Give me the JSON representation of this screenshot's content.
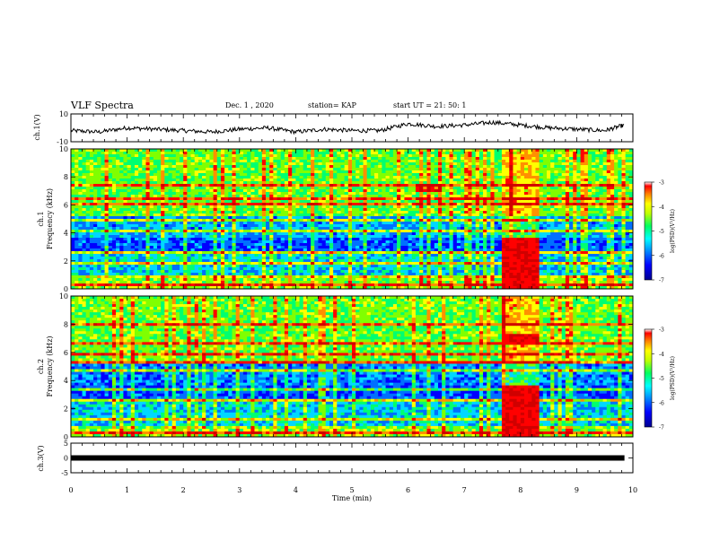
{
  "header": {
    "title": "VLF Spectra",
    "date": "Dec. 1 , 2020",
    "station": "station= KAP",
    "start": "start UT = 21: 50: 1"
  },
  "colors": {
    "cmap": [
      "#000090",
      "#0000ff",
      "#0070ff",
      "#00d8ff",
      "#00ff70",
      "#80ff00",
      "#ffff00",
      "#ff9000",
      "#ff0000",
      "#d00000"
    ],
    "trace": "#000000",
    "frame": "#000000"
  },
  "chart_data": [
    {
      "type": "line",
      "name": "ch1-waveform",
      "ylabel": "ch.1(V)",
      "ylim": [
        -10,
        10
      ],
      "yticks": [
        "10",
        "-10"
      ],
      "x": [
        0.0,
        0.5,
        1.0,
        1.5,
        2.0,
        2.5,
        3.0,
        3.5,
        4.0,
        4.5,
        5.0,
        5.5,
        6.0,
        6.5,
        7.0,
        7.5,
        8.0,
        8.5,
        9.0,
        9.5,
        9.85
      ],
      "y": [
        -2,
        -3,
        0,
        -1,
        -2,
        -3,
        -1,
        0,
        -3,
        -1,
        -2,
        -2,
        3,
        1,
        2,
        4,
        2,
        0,
        -1,
        -2,
        2
      ]
    },
    {
      "type": "heatmap",
      "name": "ch1-spectrogram",
      "ylabel": "ch.1 Frequency (kHz)",
      "ylim": [
        0,
        10
      ],
      "yticks": [
        "0",
        "2",
        "4",
        "6",
        "8",
        "10"
      ],
      "colorbar": {
        "label": "log(PSD)(V²/Hz)",
        "range": [
          -7,
          -3
        ],
        "ticks": [
          "-3",
          "-4",
          "-5",
          "-6",
          "-7"
        ]
      },
      "burst": {
        "t_start": 7.65,
        "t_end": 8.3
      }
    },
    {
      "type": "heatmap",
      "name": "ch2-spectrogram",
      "ylabel": "ch.2 Frequency (kHz)",
      "ylim": [
        0,
        10
      ],
      "yticks": [
        "0",
        "2",
        "4",
        "6",
        "8",
        "10"
      ],
      "colorbar": {
        "label": "log(PSD)(V²/Hz)",
        "range": [
          -7,
          -3
        ],
        "ticks": [
          "-3",
          "-4",
          "-5",
          "-6",
          "-7"
        ]
      },
      "burst": {
        "t_start": 7.65,
        "t_end": 8.3
      }
    },
    {
      "type": "line",
      "name": "ch3-level",
      "ylabel": "ch.3(V)",
      "ylim": [
        -5,
        5
      ],
      "yticks": [
        "5",
        "0",
        "-5"
      ],
      "x": [
        0,
        9.85
      ],
      "y": [
        0,
        0
      ]
    }
  ],
  "xaxis": {
    "label": "Time (min)",
    "range": [
      0,
      10
    ],
    "ticks": [
      "0",
      "1",
      "2",
      "3",
      "4",
      "5",
      "6",
      "7",
      "8",
      "9",
      "10"
    ]
  }
}
